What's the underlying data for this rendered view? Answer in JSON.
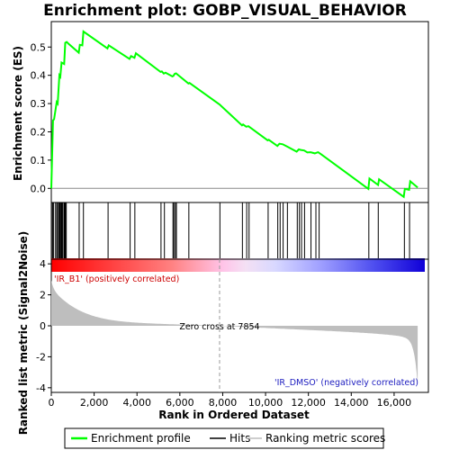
{
  "chart_data": {
    "type": "line",
    "title": "Enrichment plot: GOBP_VISUAL_BEHAVIOR",
    "top_panel": {
      "ylabel": "Enrichment score (ES)",
      "ylim": [
        -0.05,
        0.59
      ],
      "yticks": [
        0.0,
        0.1,
        0.2,
        0.3,
        0.4,
        0.5
      ],
      "ytick_labels": [
        "0.0",
        "0.1",
        "0.2",
        "0.3",
        "0.4",
        "0.5"
      ],
      "series": [
        {
          "name": "Enrichment profile",
          "color": "#00ff00",
          "x": [
            0,
            80,
            130,
            250,
            300,
            380,
            420,
            480,
            600,
            650,
            720,
            800,
            1280,
            1330,
            1450,
            1500,
            2620,
            2680,
            3650,
            3720,
            3880,
            3950,
            5100,
            5160,
            5250,
            5330,
            5650,
            5700,
            5760,
            5820,
            6400,
            6450,
            7850,
            8900,
            8950,
            9100,
            9200,
            10100,
            10150,
            10550,
            10650,
            10800,
            11000,
            11450,
            11550,
            11650,
            11800,
            11950,
            12100,
            12300,
            12450,
            12600,
            14800,
            14850,
            15250,
            15300,
            16450,
            16500,
            16700,
            16750,
            17100
          ],
          "y": [
            0.0,
            0.24,
            0.245,
            0.305,
            0.3,
            0.4,
            0.395,
            0.445,
            0.44,
            0.515,
            0.518,
            0.512,
            0.48,
            0.508,
            0.506,
            0.555,
            0.495,
            0.506,
            0.458,
            0.468,
            0.462,
            0.478,
            0.412,
            0.414,
            0.406,
            0.409,
            0.396,
            0.398,
            0.405,
            0.407,
            0.371,
            0.373,
            0.297,
            0.223,
            0.226,
            0.218,
            0.22,
            0.17,
            0.172,
            0.15,
            0.158,
            0.156,
            0.148,
            0.13,
            0.138,
            0.136,
            0.134,
            0.127,
            0.128,
            0.124,
            0.128,
            0.12,
            -0.002,
            0.035,
            0.012,
            0.032,
            -0.03,
            -0.002,
            -0.005,
            0.025,
            0.003
          ]
        }
      ]
    },
    "hits": [
      10,
      60,
      110,
      200,
      260,
      300,
      360,
      400,
      430,
      470,
      500,
      540,
      600,
      630,
      660,
      700,
      1300,
      1500,
      2650,
      3680,
      3900,
      5120,
      5280,
      5680,
      5720,
      5790,
      5840,
      6420,
      7870,
      8920,
      9120,
      9230,
      10120,
      10570,
      10680,
      10820,
      11020,
      11480,
      11580,
      11680,
      11820,
      12120,
      12350,
      12500,
      14820,
      15260,
      16480,
      16720
    ],
    "bottom_panel": {
      "ylabel": "Ranked list metric (Signal2Noise)",
      "xlabel": "Rank in Ordered Dataset",
      "ylim": [
        -4.3,
        4.3
      ],
      "yticks": [
        4,
        2,
        0,
        -2,
        -4
      ],
      "ytick_labels": [
        "4",
        "2",
        "0",
        "-2",
        "-4"
      ],
      "xlim": [
        0,
        17600
      ],
      "xticks": [
        0,
        2000,
        4000,
        6000,
        8000,
        10000,
        12000,
        14000,
        16000
      ],
      "xtick_labels": [
        "0",
        "2,000",
        "4,000",
        "6,000",
        "8,000",
        "10,000",
        "12,000",
        "14,000",
        "16,000"
      ],
      "zero_cross": 7854,
      "zero_cross_label": "Zero cross at 7854",
      "pos_label": "'IR_B1' (positively correlated)",
      "neg_label": "'IR_DMSO' (negatively correlated)",
      "n_genes": 17100
    },
    "legend": {
      "items": [
        {
          "label": "Enrichment profile",
          "color": "#00ff00"
        },
        {
          "label": "Hits",
          "color": "#000000"
        },
        {
          "label": "Ranking metric scores",
          "color": "#bebebe"
        }
      ]
    }
  }
}
